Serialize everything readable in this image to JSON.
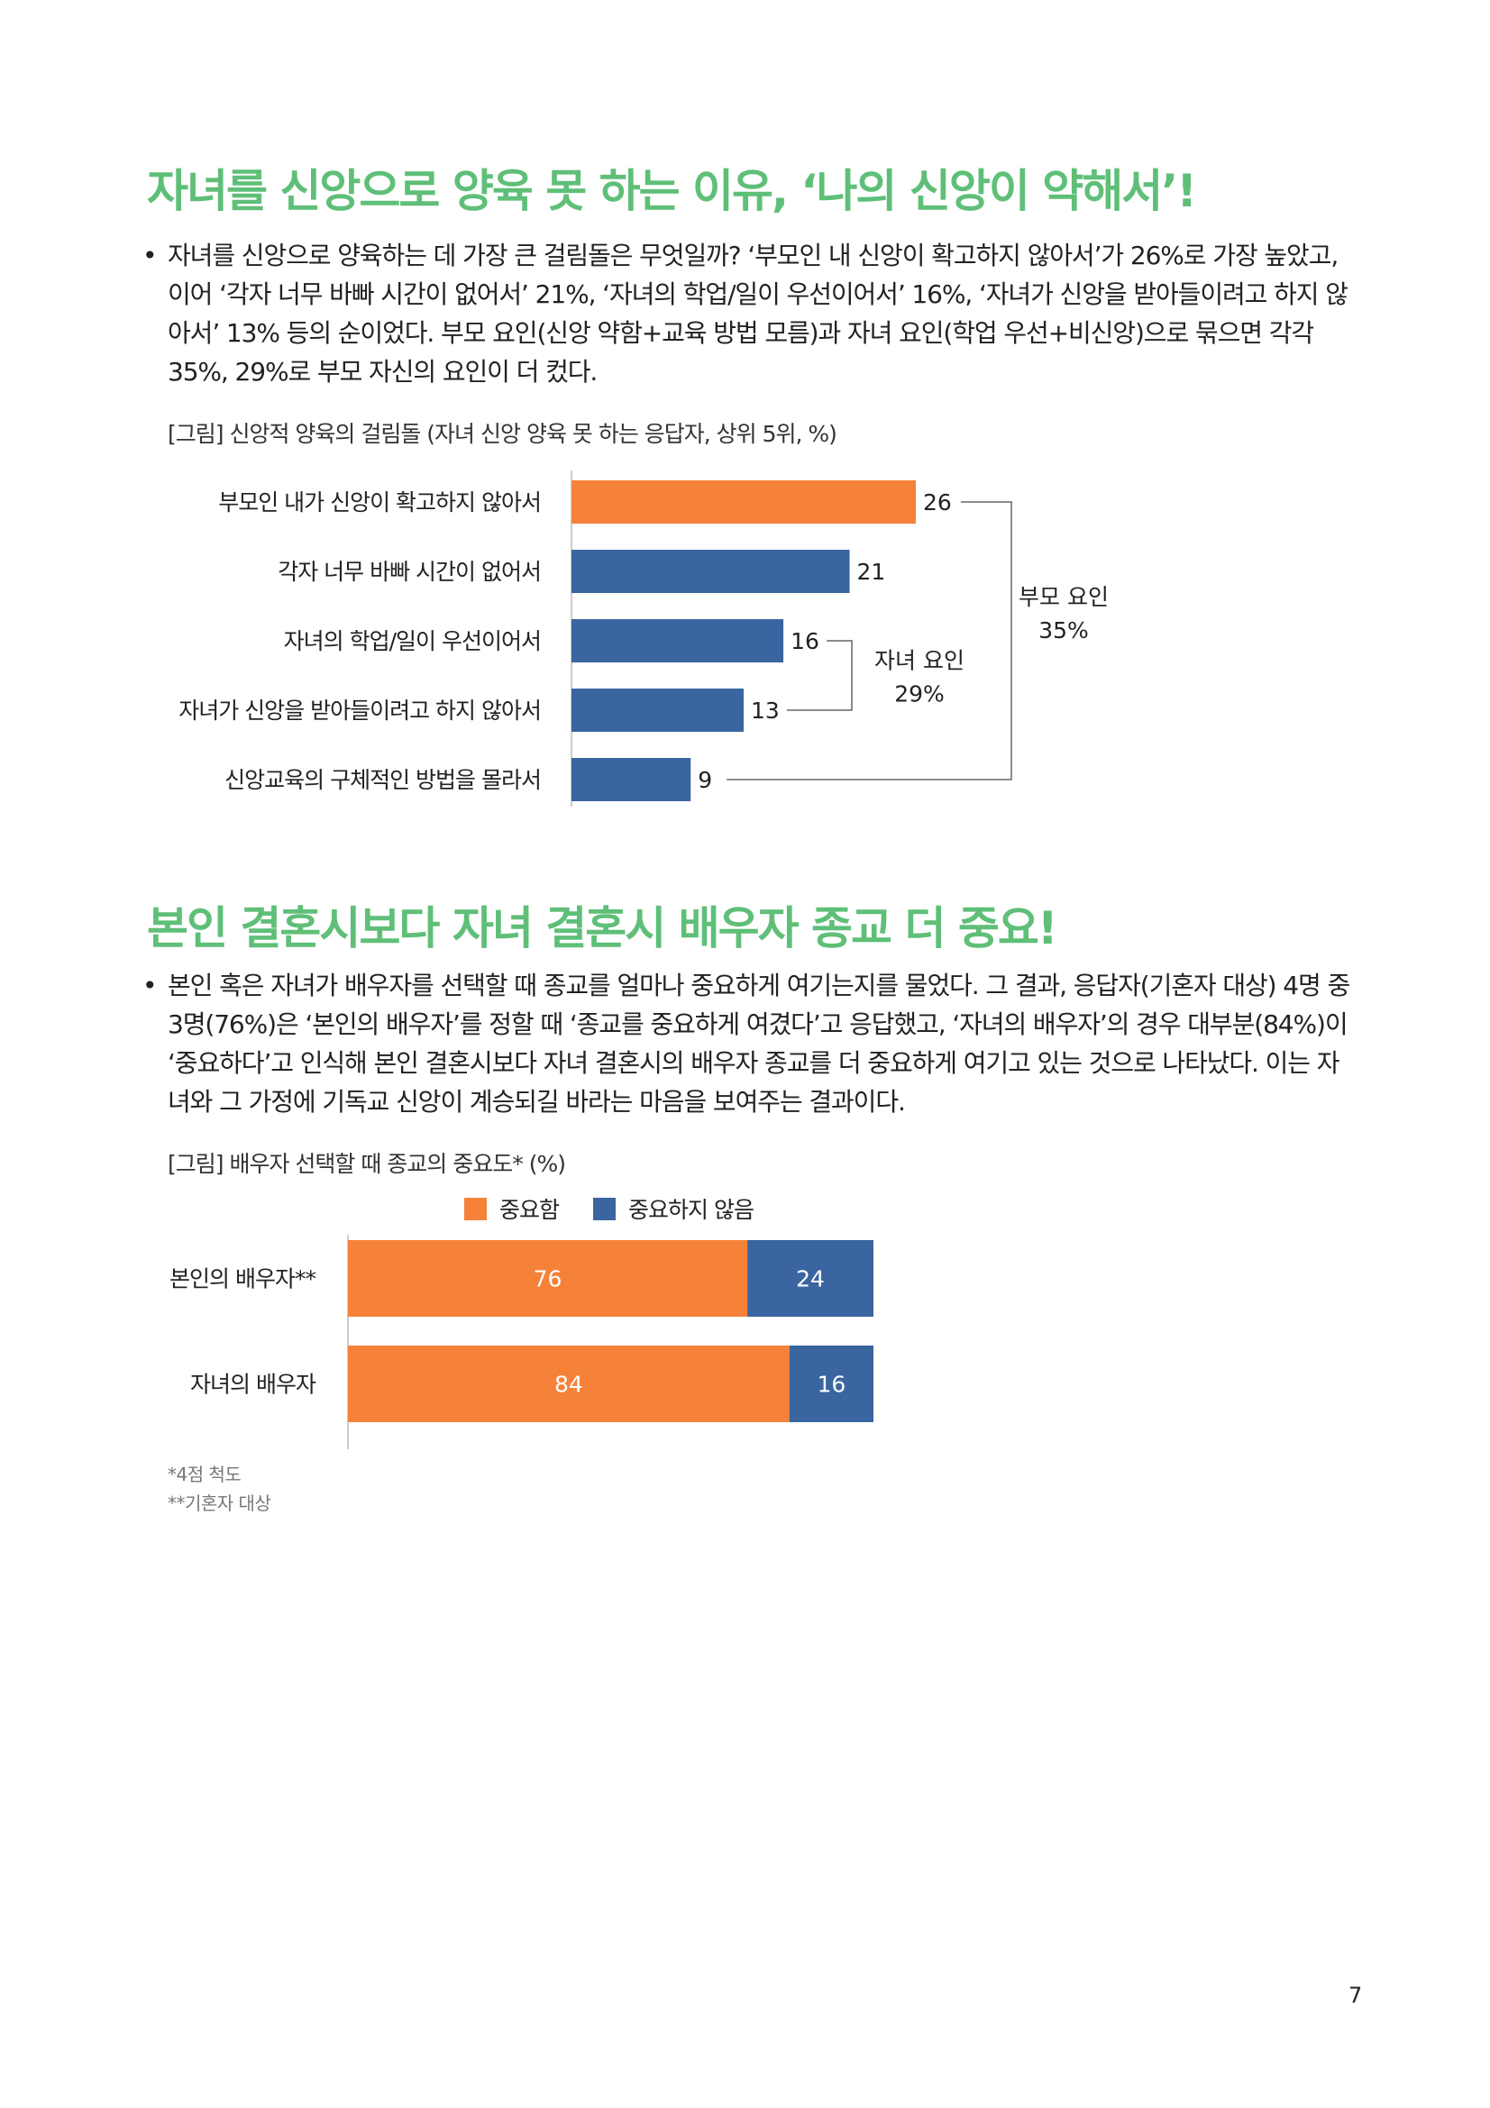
{
  "section1": {
    "heading": "자녀를 신앙으로 양육 못 하는 이유, ‘나의 신앙이 약해서’!",
    "bullet": "•",
    "paragraph": "자녀를 신앙으로 양육하는 데 가장 큰 걸림돌은 무엇일까? ‘부모인 내 신앙이 확고하지 않아서’가 26%로 가장 높았고, 이어 ‘각자 너무 바빠 시간이 없어서’ 21%, ‘자녀의 학업/일이 우선이어서’ 16%, ‘자녀가 신앙을 받아들이려고 하지 않아서’ 13% 등의 순이었다. 부모 요인(신앙 약함+교육 방법 모름)과 자녀 요인(학업 우선+비신앙)으로 묶으면 각각 35%, 29%로 부모 자신의 요인이 더 컸다.",
    "figure_caption": "[그림] 신앙적 양육의 걸림돌 (자녀 신앙 양육 못 하는 응답자, 상위 5위, %)"
  },
  "section2": {
    "heading": "본인 결혼시보다 자녀 결혼시 배우자 종교 더 중요!",
    "bullet": "•",
    "paragraph": "본인 혹은 자녀가 배우자를 선택할 때 종교를 얼마나 중요하게 여기는지를 물었다. 그 결과, 응답자(기혼자 대상) 4명 중 3명(76%)은 ‘본인의 배우자’를 정할 때 ‘종교를 중요하게 여겼다’고 응답했고, ‘자녀의 배우자’의 경우 대부분(84%)이 ‘중요하다’고 인식해 본인 결혼시보다 자녀 결혼시의 배우자 종교를 더 중요하게 여기고 있는 것으로 나타났다. 이는 자녀와 그 가정에 기독교 신앙이 계승되길 바라는 마음을 보여주는 결과이다.",
    "figure_caption": "[그림] 배우자 선택할 때 종교의 중요도* (%)",
    "footnote1": "*4점 척도",
    "footnote2": "**기혼자 대상"
  },
  "page_number": "7",
  "colors": {
    "heading": "#5fbf78",
    "orange": "#f6823a",
    "blue": "#3a65a0",
    "bracket": "#666666"
  },
  "chart_data": [
    {
      "type": "bar",
      "orientation": "horizontal",
      "categories": [
        "부모인 내가 신앙이 확고하지 않아서",
        "각자 너무 바빠 시간이 없어서",
        "자녀의 학업/일이 우선이어서",
        "자녀가 신앙을 받아들이려고 하지 않아서",
        "신앙교육의 구체적인 방법을 몰라서"
      ],
      "values": [
        26,
        21,
        16,
        13,
        9
      ],
      "value_labels": [
        "26",
        "21",
        "16",
        "13",
        "9"
      ],
      "highlight_index": 0,
      "xlim": [
        0,
        26
      ],
      "groups": [
        {
          "label": "부모 요인",
          "value_label": "35%",
          "members": [
            0,
            4
          ]
        },
        {
          "label": "자녀 요인",
          "value_label": "29%",
          "members": [
            2,
            3
          ]
        }
      ]
    },
    {
      "type": "bar",
      "orientation": "horizontal",
      "stacked": true,
      "categories": [
        "본인의 배우자**",
        "자녀의 배우자"
      ],
      "series": [
        {
          "name": "중요함",
          "values": [
            76,
            84
          ],
          "labels": [
            "76",
            "84"
          ],
          "color": "#f6823a"
        },
        {
          "name": "중요하지 않음",
          "values": [
            24,
            16
          ],
          "labels": [
            "24",
            "16"
          ],
          "color": "#3a65a0"
        }
      ],
      "xlim": [
        0,
        100
      ],
      "legend": "top"
    }
  ]
}
